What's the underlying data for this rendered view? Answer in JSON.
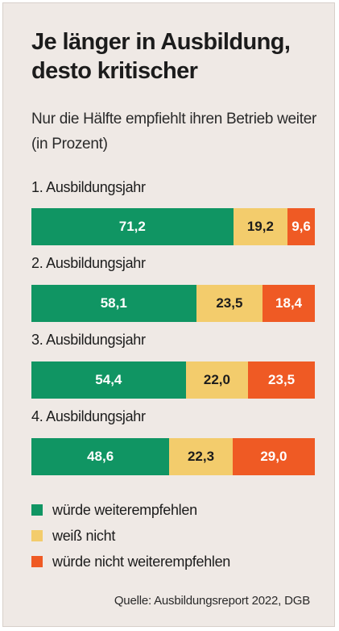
{
  "colors": {
    "green": "#109563",
    "yellow": "#f3cc6c",
    "orange": "#ef5a24"
  },
  "chart_data": {
    "type": "bar",
    "orientation": "horizontal",
    "stacked": true,
    "title": "Je länger in Ausbildung, desto kritischer",
    "subtitle": "Nur die Hälfte empfiehlt ihren Betrieb weiter (in Prozent)",
    "categories": [
      "1. Ausbildungsjahr",
      "2. Ausbildungsjahr",
      "3. Ausbildungsjahr",
      "4. Ausbildungsjahr"
    ],
    "series": [
      {
        "name": "würde weiterempfehlen",
        "color": "#109563",
        "values": [
          71.2,
          58.1,
          54.4,
          48.6
        ],
        "labels": [
          "71,2",
          "58,1",
          "54,4",
          "48,6"
        ]
      },
      {
        "name": "weiß nicht",
        "color": "#f3cc6c",
        "values": [
          19.2,
          23.5,
          22.0,
          22.3
        ],
        "labels": [
          "19,2",
          "23,5",
          "22,0",
          "22,3"
        ]
      },
      {
        "name": "würde nicht weiterempfehlen",
        "color": "#ef5a24",
        "values": [
          9.6,
          18.4,
          23.5,
          29.0
        ],
        "labels": [
          "9,6",
          "18,4",
          "23,5",
          "29,0"
        ]
      }
    ],
    "legend": "bottom",
    "source": "Quelle: Ausbildungsreport 2022, DGB"
  }
}
